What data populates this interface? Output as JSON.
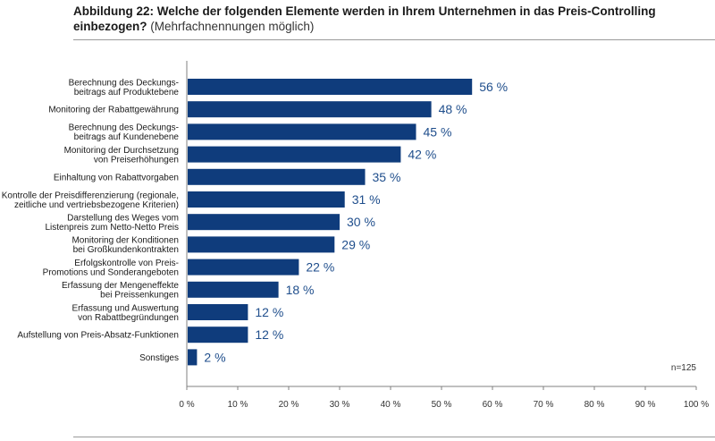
{
  "title": {
    "main": "Abbildung 22: Welche der folgenden Elemente werden in Ihrem Unternehmen in das Preis-Controlling einbezogen?",
    "sub": "(Mehrfachnennungen möglich)"
  },
  "colors": {
    "bar": "#0f3c7c",
    "value_label": "#1f4e8c",
    "axis": "#808080"
  },
  "chart_data": {
    "type": "bar",
    "orientation": "horizontal",
    "categories": [
      [
        "Berechnung des Deckungs-",
        "beitrags auf Produktebene"
      ],
      [
        "Monitoring der Rabattgewährung"
      ],
      [
        "Berechnung des Deckungs-",
        "beitrags auf Kundenebene"
      ],
      [
        "Monitoring der Durchsetzung",
        "von Preiserhöhungen"
      ],
      [
        "Einhaltung von Rabattvorgaben"
      ],
      [
        "Kontrolle der Preisdifferenzierung (regionale,",
        "zeitliche und vertriebsbezogene Kriterien)"
      ],
      [
        "Darstellung des Weges vom",
        "Listenpreis zum Netto-Netto Preis"
      ],
      [
        "Monitoring der Konditionen",
        "bei Großkundenkontrakten"
      ],
      [
        "Erfolgskontrolle von Preis-",
        "Promotions und Sonderangeboten"
      ],
      [
        "Erfassung der Mengeneffekte",
        "bei Preissenkungen"
      ],
      [
        "Erfassung und Auswertung",
        "von Rabattbegründungen"
      ],
      [
        "Aufstellung von Preis-Absatz-Funktionen"
      ],
      [
        "Sonstiges"
      ]
    ],
    "values": [
      56,
      48,
      45,
      42,
      35,
      31,
      30,
      29,
      22,
      18,
      12,
      12,
      2
    ],
    "value_labels": [
      "56 %",
      "48 %",
      "45 %",
      "42 %",
      "35 %",
      "31 %",
      "30 %",
      "29 %",
      "22 %",
      "18 %",
      "12 %",
      "12 %",
      "2 %"
    ],
    "xlim": [
      0,
      100
    ],
    "xticks": [
      0,
      10,
      20,
      30,
      40,
      50,
      60,
      70,
      80,
      90,
      100
    ],
    "xtick_labels": [
      "0 %",
      "10 %",
      "20 %",
      "30 %",
      "40 %",
      "50 %",
      "60 %",
      "70 %",
      "80 %",
      "90 %",
      "100 %"
    ],
    "grid": false,
    "annotation": "n=125"
  }
}
